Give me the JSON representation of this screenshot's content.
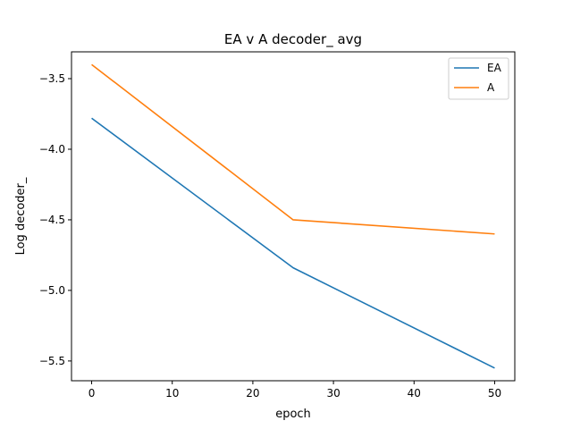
{
  "chart_data": {
    "type": "line",
    "title": "EA v A decoder_ avg",
    "xlabel": "epoch",
    "ylabel": "Log decoder_",
    "xlim": [
      -2.5,
      52.5
    ],
    "ylim": [
      -5.64,
      -3.31
    ],
    "xticks": [
      0,
      10,
      20,
      30,
      40,
      50
    ],
    "xtick_labels": [
      "0",
      "10",
      "20",
      "30",
      "40",
      "50"
    ],
    "yticks": [
      -3.5,
      -4.0,
      -4.5,
      -5.0,
      -5.5
    ],
    "ytick_labels": [
      "−3.5",
      "−4.0",
      "−4.5",
      "−5.0",
      "−5.5"
    ],
    "grid": false,
    "legend_position": "top-right",
    "series": [
      {
        "name": "EA",
        "color": "#1f77b4",
        "x": [
          0,
          25,
          50
        ],
        "y": [
          -3.78,
          -4.84,
          -5.55
        ]
      },
      {
        "name": "A",
        "color": "#ff7f0e",
        "x": [
          0,
          25,
          50
        ],
        "y": [
          -3.4,
          -4.5,
          -4.6
        ]
      }
    ]
  }
}
